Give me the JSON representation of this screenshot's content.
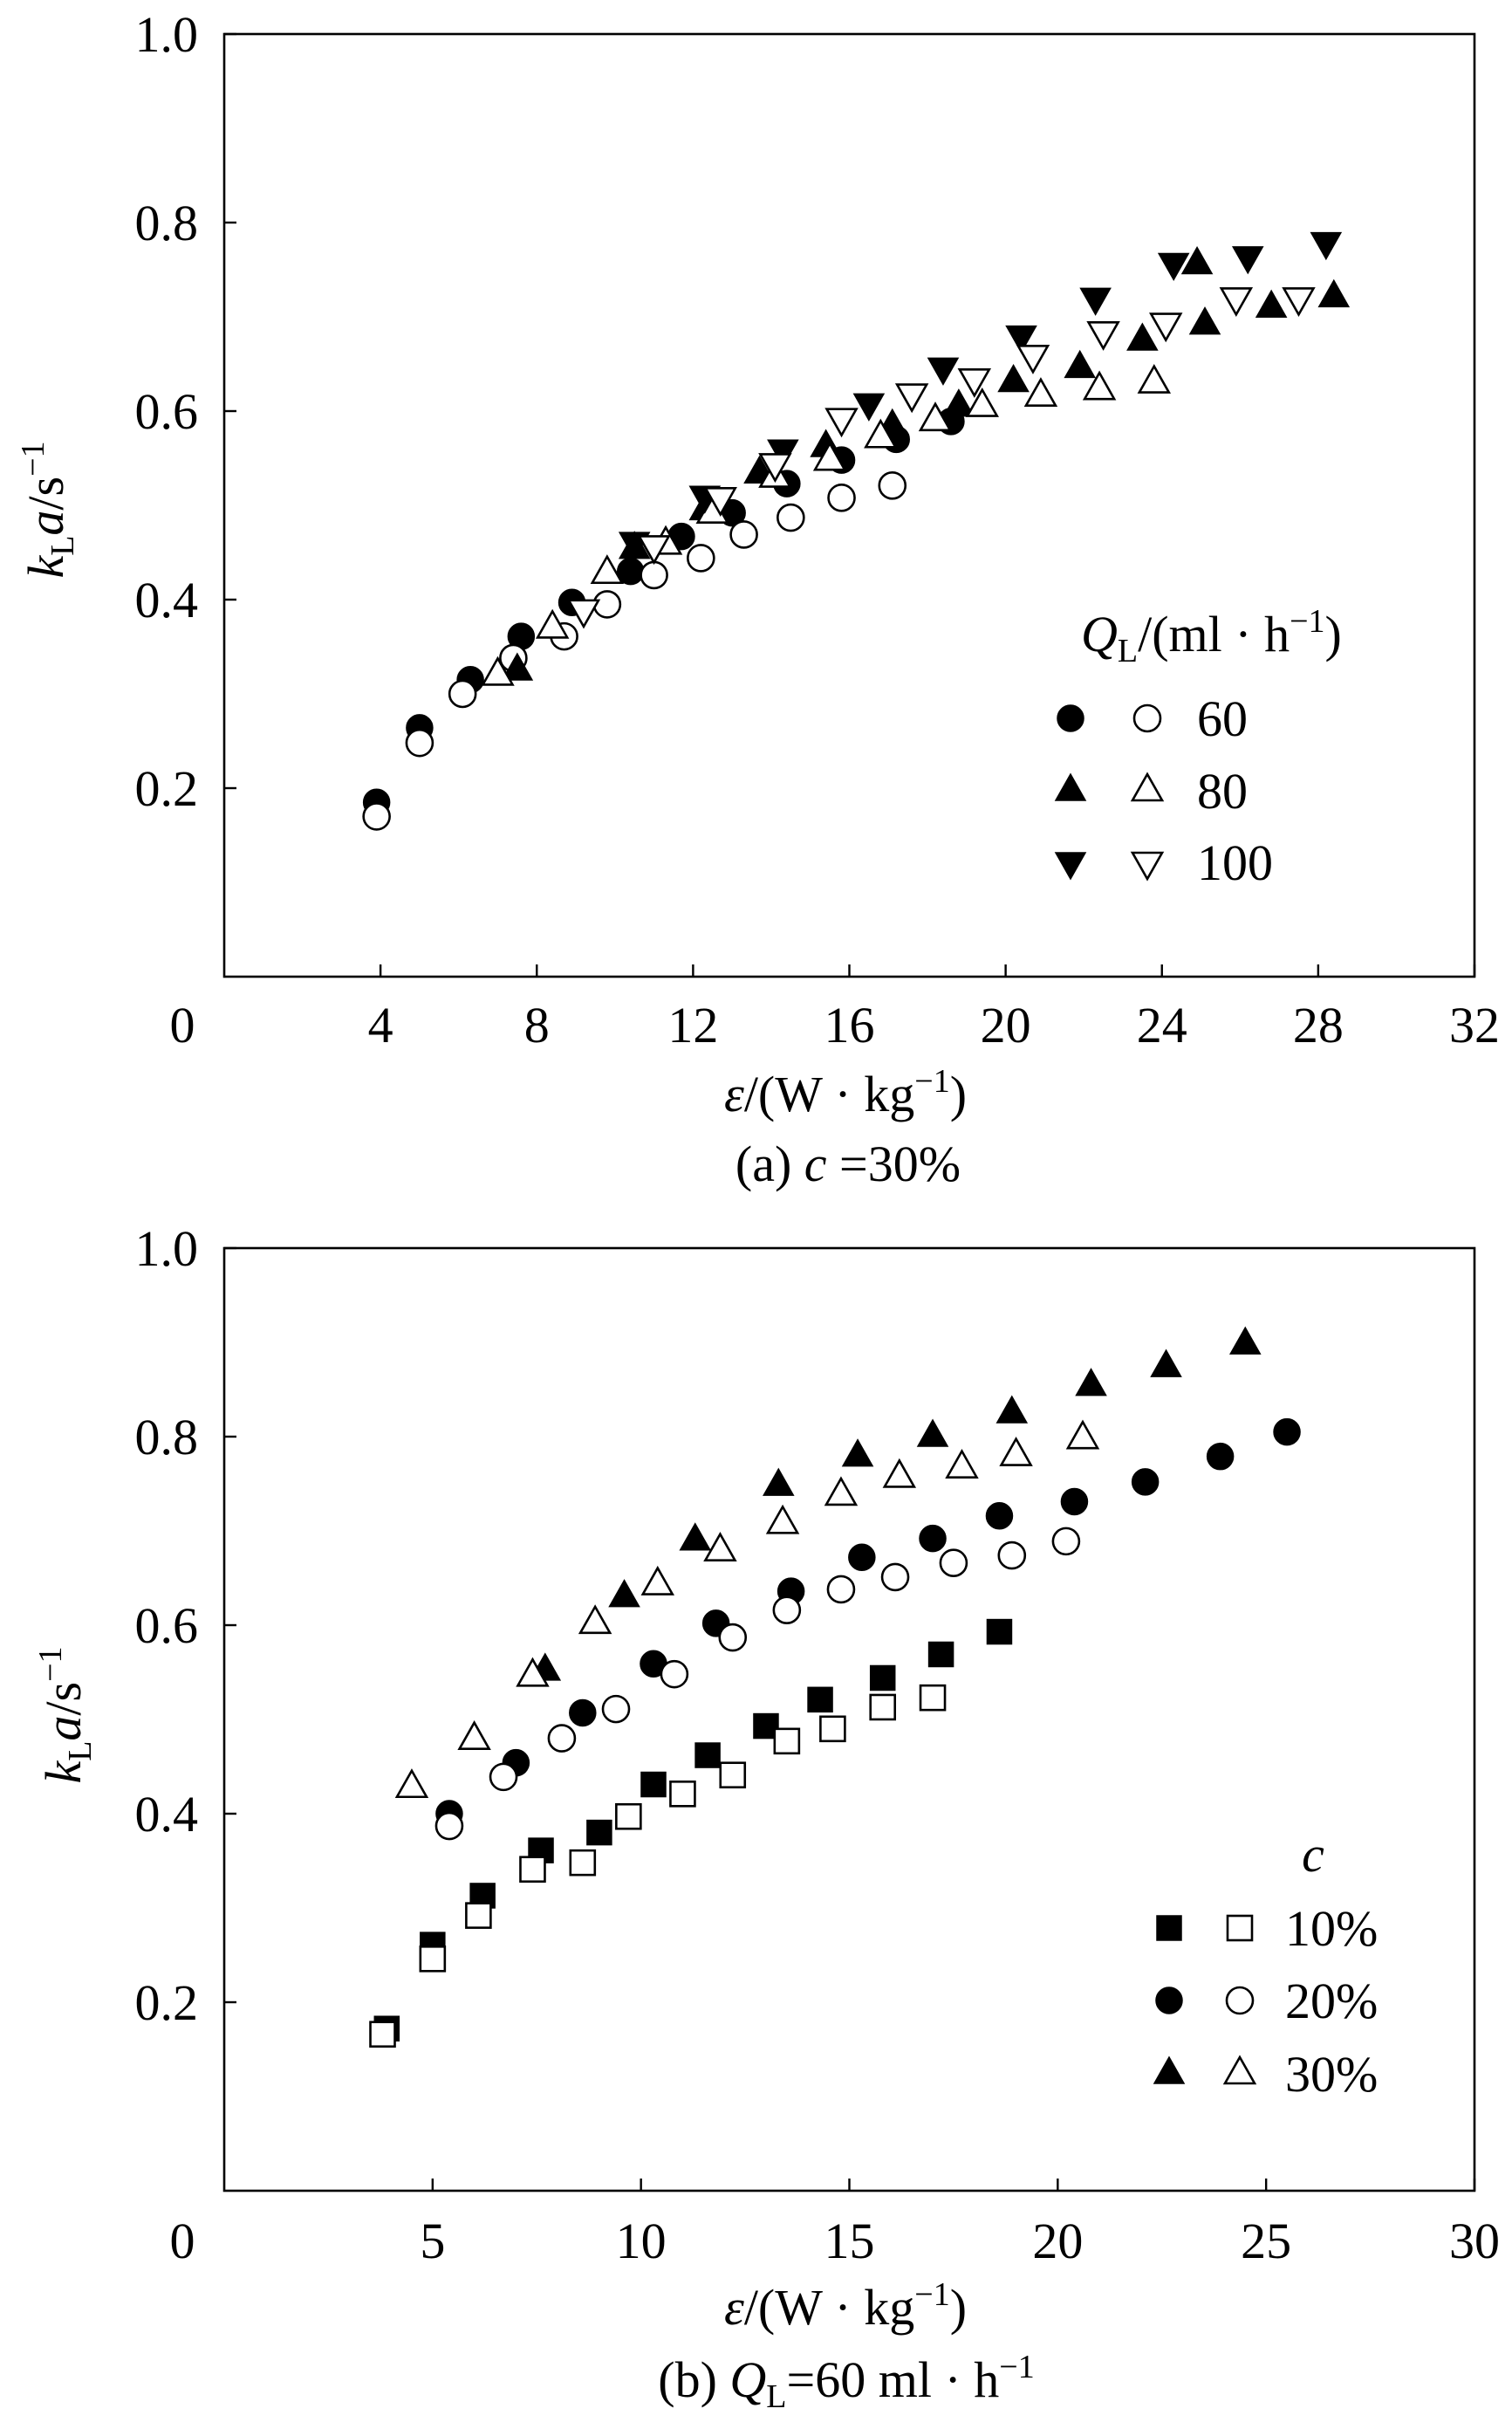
{
  "chart_data": [
    {
      "type": "scatter",
      "caption": [
        {
          "t": "(a) "
        },
        {
          "t": "c",
          "italic": true
        },
        {
          "t": " =30%"
        }
      ],
      "xlabel": [
        {
          "t": "ε",
          "italic": true
        },
        {
          "t": "/(W · kg"
        },
        {
          "t": "−1",
          "sup": true
        },
        {
          "t": ")"
        }
      ],
      "ylabel": [
        {
          "t": "k",
          "italic": true
        },
        {
          "t": "L",
          "sub": true
        },
        {
          "t": "a",
          "italic": true
        },
        {
          "t": "/s"
        },
        {
          "t": "−1",
          "sup": true
        }
      ],
      "xlim": [
        0,
        32
      ],
      "ylim": [
        0,
        1.0
      ],
      "x_ticks": [
        4,
        8,
        12,
        16,
        20,
        24,
        28,
        32
      ],
      "x_tick_labels": [
        "4",
        "8",
        "12",
        "16",
        "20",
        "24",
        "28",
        "32"
      ],
      "y_ticks": [
        0.2,
        0.4,
        0.6,
        0.8,
        1.0
      ],
      "y_tick_labels": [
        "0.2",
        "0.4",
        "0.6",
        "0.8",
        "1.0"
      ],
      "origin_label": "0",
      "grid": false,
      "legend": {
        "placement": "right",
        "title": [
          {
            "t": "Q",
            "italic": true
          },
          {
            "t": "L",
            "sub": true
          },
          {
            "t": "/(ml · h"
          },
          {
            "t": "−1",
            "sup": true
          },
          {
            "t": ")"
          }
        ],
        "entries": [
          {
            "label": "60",
            "marker": "circle",
            "filled": [
              [
                3.9,
                0.185
              ],
              [
                5.0,
                0.264
              ],
              [
                6.3,
                0.315
              ],
              [
                7.6,
                0.361
              ],
              [
                8.9,
                0.397
              ],
              [
                10.4,
                0.43
              ],
              [
                11.7,
                0.467
              ],
              [
                13.0,
                0.492
              ],
              [
                14.4,
                0.523
              ],
              [
                15.8,
                0.548
              ],
              [
                17.2,
                0.57
              ],
              [
                18.6,
                0.589
              ]
            ],
            "open": [
              [
                3.9,
                0.17
              ],
              [
                5.0,
                0.248
              ],
              [
                6.1,
                0.3
              ],
              [
                7.4,
                0.338
              ],
              [
                8.7,
                0.361
              ],
              [
                9.8,
                0.395
              ],
              [
                11.0,
                0.426
              ],
              [
                12.2,
                0.444
              ],
              [
                13.3,
                0.469
              ],
              [
                14.5,
                0.487
              ],
              [
                15.8,
                0.508
              ],
              [
                17.1,
                0.521
              ]
            ]
          },
          {
            "label": "80",
            "marker": "triangle-up",
            "filled": [
              [
                7.5,
                0.325
              ],
              [
                10.5,
                0.454
              ],
              [
                12.3,
                0.495
              ],
              [
                13.7,
                0.534
              ],
              [
                15.4,
                0.562
              ],
              [
                17.1,
                0.584
              ],
              [
                18.8,
                0.605
              ],
              [
                20.2,
                0.631
              ],
              [
                21.9,
                0.646
              ],
              [
                23.5,
                0.675
              ],
              [
                24.9,
                0.756
              ],
              [
                25.1,
                0.692
              ],
              [
                26.8,
                0.71
              ],
              [
                28.4,
                0.721
              ]
            ],
            "open": [
              [
                7.0,
                0.32
              ],
              [
                8.4,
                0.37
              ],
              [
                9.8,
                0.428
              ],
              [
                11.3,
                0.459
              ],
              [
                12.5,
                0.492
              ],
              [
                14.1,
                0.53
              ],
              [
                15.5,
                0.548
              ],
              [
                16.8,
                0.572
              ],
              [
                18.2,
                0.59
              ],
              [
                19.4,
                0.605
              ],
              [
                20.9,
                0.616
              ],
              [
                22.4,
                0.623
              ],
              [
                23.8,
                0.63
              ]
            ]
          },
          {
            "label": "100",
            "marker": "triangle-down",
            "filled": [
              [
                10.5,
                0.461
              ],
              [
                12.3,
                0.51
              ],
              [
                14.3,
                0.559
              ],
              [
                16.5,
                0.608
              ],
              [
                18.4,
                0.646
              ],
              [
                20.4,
                0.68
              ],
              [
                22.3,
                0.72
              ],
              [
                24.3,
                0.757
              ],
              [
                26.2,
                0.764
              ],
              [
                28.2,
                0.779
              ]
            ],
            "open": [
              [
                9.2,
                0.389
              ],
              [
                11.0,
                0.457
              ],
              [
                12.7,
                0.508
              ],
              [
                14.1,
                0.544
              ],
              [
                15.8,
                0.592
              ],
              [
                17.6,
                0.618
              ],
              [
                19.2,
                0.634
              ],
              [
                20.7,
                0.659
              ],
              [
                22.5,
                0.684
              ],
              [
                24.1,
                0.693
              ],
              [
                25.9,
                0.72
              ],
              [
                27.5,
                0.72
              ]
            ]
          }
        ]
      }
    },
    {
      "type": "scatter",
      "caption": [
        {
          "t": "(b) "
        },
        {
          "t": "Q",
          "italic": true
        },
        {
          "t": "L",
          "sub": true
        },
        {
          "t": "=60 ml · h"
        },
        {
          "t": "−1",
          "sup": true
        }
      ],
      "xlabel": [
        {
          "t": "ε",
          "italic": true
        },
        {
          "t": "/(W · kg"
        },
        {
          "t": "−1",
          "sup": true
        },
        {
          "t": ")"
        }
      ],
      "ylabel": [
        {
          "t": "k",
          "italic": true
        },
        {
          "t": "L",
          "sub": true
        },
        {
          "t": "a",
          "italic": true
        },
        {
          "t": "/s"
        },
        {
          "t": "−1",
          "sup": true
        }
      ],
      "xlim": [
        0,
        30
      ],
      "ylim": [
        0,
        1.0
      ],
      "x_ticks": [
        5,
        10,
        15,
        20,
        25,
        30
      ],
      "x_tick_labels": [
        "5",
        "10",
        "15",
        "20",
        "25",
        "30"
      ],
      "y_ticks": [
        0.2,
        0.4,
        0.6,
        0.8,
        1.0
      ],
      "y_tick_labels": [
        "0.2",
        "0.4",
        "0.6",
        "0.8",
        "1.0"
      ],
      "origin_label": "0",
      "grid": false,
      "legend": {
        "placement": "right",
        "title": [
          {
            "t": "c",
            "italic": true
          }
        ],
        "entries": [
          {
            "label": "10%",
            "marker": "square",
            "filled": [
              [
                3.9,
                0.172
              ],
              [
                5.0,
                0.261
              ],
              [
                6.2,
                0.313
              ],
              [
                7.6,
                0.361
              ],
              [
                9.0,
                0.38
              ],
              [
                10.3,
                0.431
              ],
              [
                11.6,
                0.462
              ],
              [
                13.0,
                0.493
              ],
              [
                14.3,
                0.521
              ],
              [
                15.8,
                0.544
              ],
              [
                17.2,
                0.569
              ],
              [
                18.6,
                0.593
              ]
            ],
            "open": [
              [
                3.8,
                0.166
              ],
              [
                5.0,
                0.246
              ],
              [
                6.1,
                0.292
              ],
              [
                7.4,
                0.341
              ],
              [
                8.6,
                0.348
              ],
              [
                9.7,
                0.397
              ],
              [
                11.0,
                0.421
              ],
              [
                12.2,
                0.441
              ],
              [
                13.5,
                0.477
              ],
              [
                14.6,
                0.49
              ],
              [
                15.8,
                0.513
              ],
              [
                17.0,
                0.523
              ]
            ]
          },
          {
            "label": "20%",
            "marker": "circle",
            "filled": [
              [
                5.4,
                0.4
              ],
              [
                7.0,
                0.454
              ],
              [
                8.6,
                0.507
              ],
              [
                10.3,
                0.559
              ],
              [
                11.8,
                0.602
              ],
              [
                13.6,
                0.636
              ],
              [
                15.3,
                0.672
              ],
              [
                17.0,
                0.692
              ],
              [
                18.6,
                0.716
              ],
              [
                20.4,
                0.731
              ],
              [
                22.1,
                0.752
              ],
              [
                23.9,
                0.779
              ],
              [
                25.5,
                0.805
              ]
            ],
            "open": [
              [
                5.4,
                0.387
              ],
              [
                6.7,
                0.439
              ],
              [
                8.1,
                0.48
              ],
              [
                9.4,
                0.511
              ],
              [
                10.8,
                0.548
              ],
              [
                12.2,
                0.587
              ],
              [
                13.5,
                0.616
              ],
              [
                14.8,
                0.638
              ],
              [
                16.1,
                0.651
              ],
              [
                17.5,
                0.666
              ],
              [
                18.9,
                0.674
              ],
              [
                20.2,
                0.689
              ]
            ]
          },
          {
            "label": "30%",
            "marker": "triangle-up",
            "filled": [
              [
                7.7,
                0.552
              ],
              [
                9.6,
                0.63
              ],
              [
                11.3,
                0.69
              ],
              [
                13.3,
                0.748
              ],
              [
                15.2,
                0.779
              ],
              [
                17.0,
                0.8
              ],
              [
                18.9,
                0.825
              ],
              [
                20.8,
                0.854
              ],
              [
                22.6,
                0.874
              ],
              [
                24.5,
                0.898
              ]
            ],
            "open": [
              [
                4.5,
                0.428
              ],
              [
                6.0,
                0.479
              ],
              [
                7.4,
                0.546
              ],
              [
                8.9,
                0.602
              ],
              [
                10.4,
                0.643
              ],
              [
                11.9,
                0.679
              ],
              [
                13.4,
                0.708
              ],
              [
                14.8,
                0.738
              ],
              [
                16.2,
                0.757
              ],
              [
                17.7,
                0.767
              ],
              [
                19.0,
                0.78
              ],
              [
                20.6,
                0.798
              ]
            ]
          }
        ]
      }
    }
  ]
}
